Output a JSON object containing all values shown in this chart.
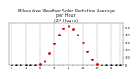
{
  "title": "Milwaukee Weather Solar Radiation Average\nper Hour\n(24 Hours)",
  "hours": [
    0,
    1,
    2,
    3,
    4,
    5,
    6,
    7,
    8,
    9,
    10,
    11,
    12,
    13,
    14,
    15,
    16,
    17,
    18,
    19,
    20,
    21,
    22,
    23
  ],
  "solar_avg": [
    0,
    0,
    0,
    0,
    0,
    0,
    5,
    50,
    150,
    280,
    400,
    490,
    520,
    480,
    400,
    300,
    180,
    70,
    10,
    0,
    0,
    0,
    0,
    0
  ],
  "ylim": [
    0,
    560
  ],
  "xlim": [
    -0.5,
    23.5
  ],
  "bg_color": "#ffffff",
  "dot_color_main": "#cc0000",
  "dot_color_dark": "#111111",
  "grid_color": "#999999",
  "title_color": "#222222",
  "title_fontsize": 3.5,
  "tick_fontsize": 2.5,
  "yticks": [
    0,
    100,
    200,
    300,
    400,
    500
  ],
  "vgrid_positions": [
    0,
    3,
    6,
    9,
    12,
    15,
    18,
    21,
    23
  ],
  "xtick_step": 3
}
